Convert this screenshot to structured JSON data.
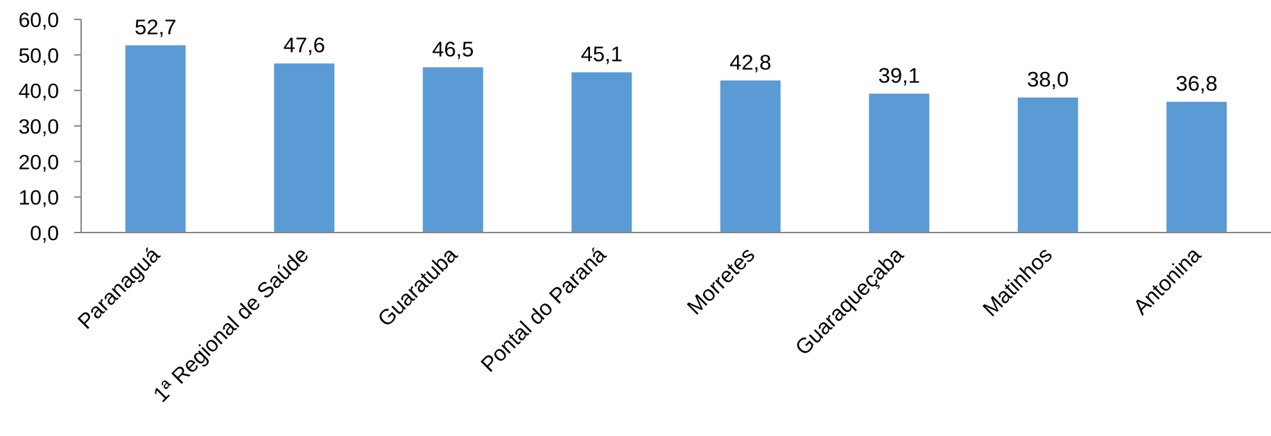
{
  "chart_data": {
    "type": "bar",
    "categories": [
      "Paranaguá",
      "1ª Regional de Saúde",
      "Guaratuba",
      "Pontal do Paraná",
      "Morretes",
      "Guaraqueçaba",
      "Matinhos",
      "Antonina"
    ],
    "values": [
      52.7,
      47.6,
      46.5,
      45.1,
      42.8,
      39.1,
      38.0,
      36.8
    ],
    "value_labels": [
      "52,7",
      "47,6",
      "46,5",
      "45,1",
      "42,8",
      "39,1",
      "38,0",
      "36,8"
    ],
    "y_ticks": [
      0,
      10,
      20,
      30,
      40,
      50,
      60
    ],
    "y_tick_labels": [
      "0,0",
      "10,0",
      "20,0",
      "30,0",
      "40,0",
      "50,0",
      "60,0"
    ],
    "ylim": [
      0,
      60
    ],
    "grid": false,
    "bar_color": "#5B9BD5",
    "axis_color": "#868686"
  }
}
